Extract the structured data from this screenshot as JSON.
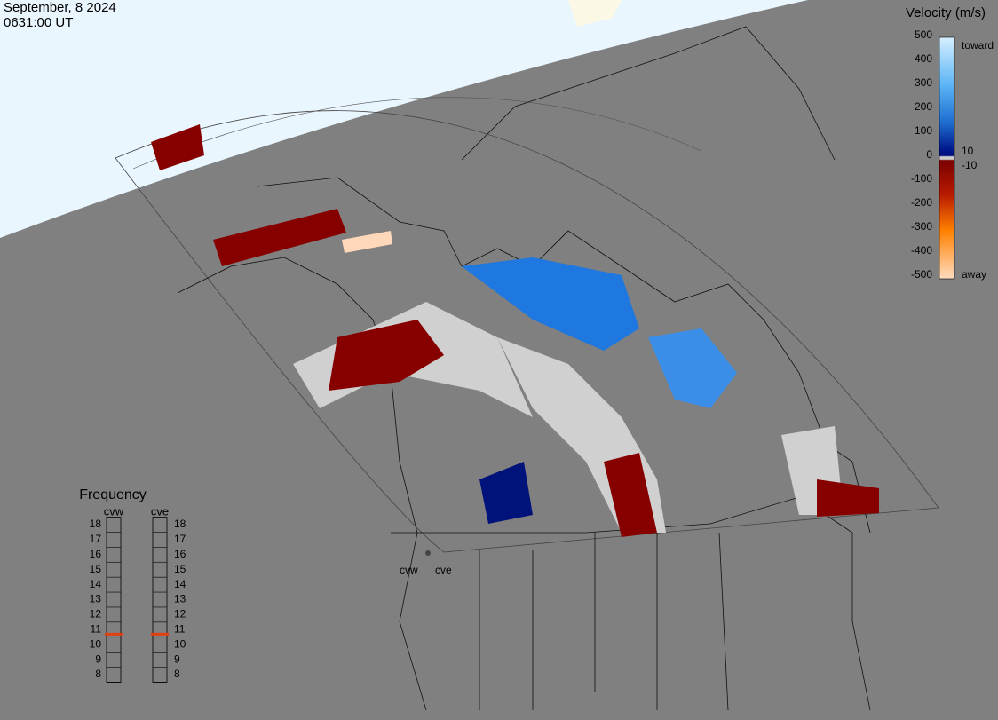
{
  "header": {
    "date": "September, 8 2024",
    "time": "0631:00 UT"
  },
  "velocity_legend": {
    "title": "Velocity (m/s)",
    "ticks": [
      500,
      400,
      300,
      200,
      100,
      0,
      -100,
      -200,
      -300,
      -400,
      -500
    ],
    "near_zero": [
      10,
      -10
    ],
    "top_label": "toward",
    "bottom_label": "away"
  },
  "frequency": {
    "title": "Frequency",
    "radars": [
      {
        "name": "cvw",
        "value": 10.7
      },
      {
        "name": "cve",
        "value": 10.7
      }
    ],
    "ticks": [
      18,
      17,
      16,
      15,
      14,
      13,
      12,
      11,
      10,
      9,
      8
    ]
  },
  "sites": [
    "cvw",
    "cve"
  ]
}
